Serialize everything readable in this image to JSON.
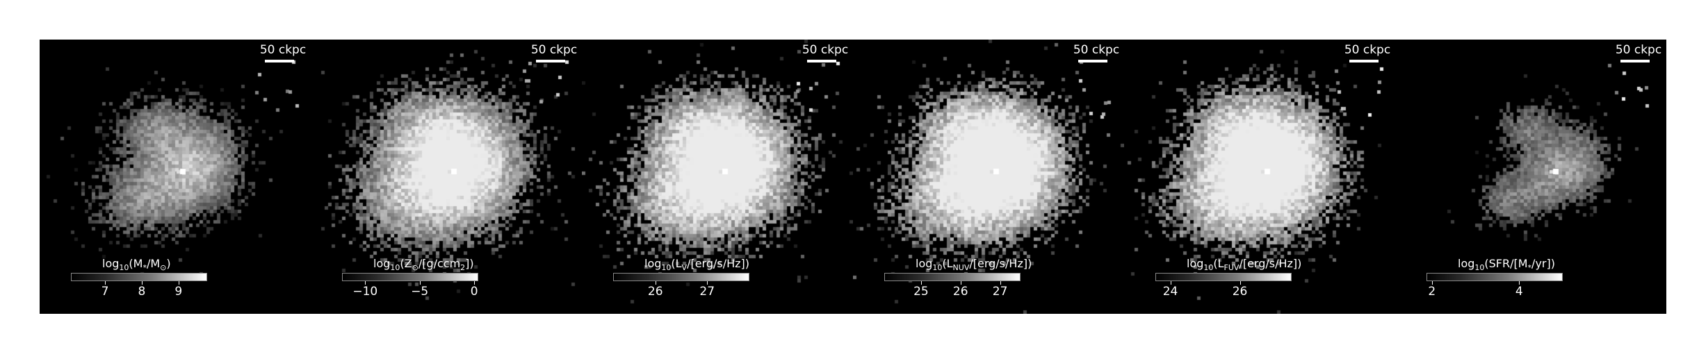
{
  "figure": {
    "background": "#000000",
    "panels": [
      {
        "name": "stellar-mass",
        "scalebar": "50 ckpc",
        "colorbar_label": "log10(M*/M⊙)",
        "label_parts": [
          "log",
          "10",
          "(M",
          "*",
          "/M",
          "⊙",
          ")"
        ],
        "ticks": [
          {
            "label": "7",
            "pos": 0.25
          },
          {
            "label": "8",
            "pos": 0.52
          },
          {
            "label": "9",
            "pos": 0.79
          }
        ],
        "distribution": "compact",
        "brightness": 0.8
      },
      {
        "name": "metal-surface-density",
        "scalebar": "50 ckpc",
        "colorbar_label": "log10(Z⊙/[g/ccm²])",
        "label_parts": [
          "log",
          "10",
          "(Z",
          "⊙",
          "/[g/ccm",
          "2",
          "])"
        ],
        "ticks": [
          {
            "label": "−10",
            "pos": 0.17
          },
          {
            "label": "−5",
            "pos": 0.57
          },
          {
            "label": "0",
            "pos": 0.97
          }
        ],
        "distribution": "extended",
        "brightness": 1.0
      },
      {
        "name": "luminosity-v",
        "scalebar": "50 ckpc",
        "colorbar_label": "log10(LV/[erg/s/Hz])",
        "label_parts": [
          "log",
          "10",
          "(L",
          "V",
          "/[erg/s/Hz])",
          "",
          ""
        ],
        "ticks": [
          {
            "label": "26",
            "pos": 0.31
          },
          {
            "label": "27",
            "pos": 0.69
          }
        ],
        "distribution": "extended",
        "brightness": 1.1
      },
      {
        "name": "luminosity-nuv",
        "scalebar": "50 ckpc",
        "colorbar_label": "log10(LNUV/[erg/s/Hz])",
        "label_parts": [
          "log",
          "10",
          "(L",
          "NUV",
          "/[erg/s/Hz])",
          "",
          ""
        ],
        "ticks": [
          {
            "label": "25",
            "pos": 0.27
          },
          {
            "label": "26",
            "pos": 0.56
          },
          {
            "label": "27",
            "pos": 0.85
          }
        ],
        "distribution": "extended",
        "brightness": 1.15
      },
      {
        "name": "luminosity-fuv",
        "scalebar": "50 ckpc",
        "colorbar_label": "log10(LFUV/[erg/s/Hz])",
        "label_parts": [
          "log",
          "10",
          "(L",
          "FUV",
          "/[erg/s/Hz])",
          "",
          ""
        ],
        "ticks": [
          {
            "label": "24",
            "pos": 0.11
          },
          {
            "label": "26",
            "pos": 0.62
          }
        ],
        "distribution": "extended",
        "brightness": 1.15
      },
      {
        "name": "star-formation-rate",
        "scalebar": "50 ckpc",
        "colorbar_label": "log10(SFR/[M*/yr])",
        "label_parts": [
          "log",
          "10",
          "(SFR/[M",
          "*",
          "/yr])",
          "",
          ""
        ],
        "ticks": [
          {
            "label": "2",
            "pos": 0.04
          },
          {
            "label": "4",
            "pos": 0.68
          }
        ],
        "distribution": "sparse",
        "brightness": 0.75
      }
    ]
  }
}
